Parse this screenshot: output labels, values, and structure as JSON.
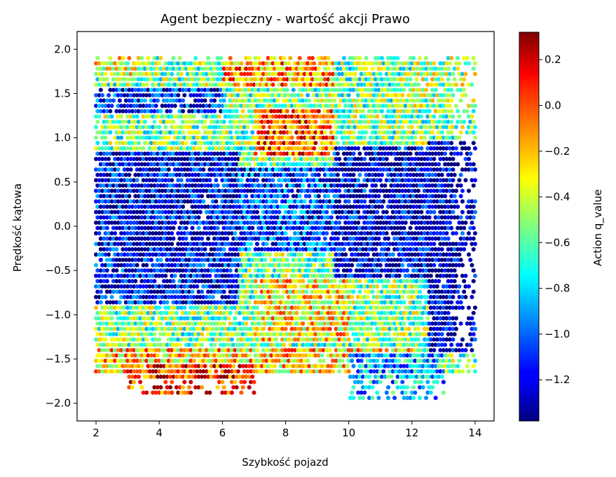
{
  "chart_data": {
    "type": "heatmap",
    "title": "Agent bezpieczny - wartość akcji Prawo",
    "xlabel": "Szybkość pojazd",
    "ylabel": "Prędkość kątowa",
    "colorbar_label": "Action q_value",
    "xlim": [
      1.4,
      14.6
    ],
    "ylim": [
      -2.2,
      2.2
    ],
    "x_ticks": [
      2,
      4,
      6,
      8,
      10,
      12,
      14
    ],
    "y_ticks": [
      -2.0,
      -1.5,
      -1.0,
      -0.5,
      0.0,
      0.5,
      1.0,
      1.5,
      2.0
    ],
    "colorbar_range": [
      -1.38,
      0.32
    ],
    "colorbar_ticks": [
      -1.2,
      -1.0,
      -0.8,
      -0.6,
      -0.4,
      -0.2,
      0.0,
      0.2
    ],
    "colormap": "jet",
    "grid": false,
    "regions": [
      {
        "x": [
          2.0,
          14.0
        ],
        "y": [
          -1.65,
          1.95
        ],
        "value": -0.55
      },
      {
        "x": [
          2.0,
          6.5
        ],
        "y": [
          -0.9,
          0.85
        ],
        "value": -1.2
      },
      {
        "x": [
          9.5,
          12.5
        ],
        "y": [
          -0.6,
          0.9
        ],
        "value": -1.25
      },
      {
        "x": [
          12.5,
          14.0
        ],
        "y": [
          -1.4,
          0.95
        ],
        "value": -1.3
      },
      {
        "x": [
          6.5,
          9.5
        ],
        "y": [
          -0.3,
          0.7
        ],
        "value": -1.05
      },
      {
        "x": [
          2.0,
          6.0
        ],
        "y": [
          1.25,
          1.55
        ],
        "value": -1.15
      },
      {
        "x": [
          7.0,
          9.5
        ],
        "y": [
          0.8,
          1.35
        ],
        "value": -0.05
      },
      {
        "x": [
          6.0,
          9.5
        ],
        "y": [
          1.55,
          1.95
        ],
        "value": -0.15
      },
      {
        "x": [
          2.0,
          3.5
        ],
        "y": [
          1.7,
          1.95
        ],
        "value": -0.35
      },
      {
        "x": [
          2.0,
          12.0
        ],
        "y": [
          -1.65,
          -1.35
        ],
        "value": -0.25
      },
      {
        "x": [
          3.0,
          7.0
        ],
        "y": [
          -1.9,
          -1.55
        ],
        "value": 0.05
      },
      {
        "x": [
          7.0,
          10.0
        ],
        "y": [
          -1.3,
          -0.6
        ],
        "value": -0.3
      },
      {
        "x": [
          10.0,
          13.0
        ],
        "y": [
          -1.95,
          -1.45
        ],
        "value": -0.85
      },
      {
        "x": [
          12.0,
          14.0
        ],
        "y": [
          1.3,
          1.95
        ],
        "value": -0.5
      }
    ]
  }
}
